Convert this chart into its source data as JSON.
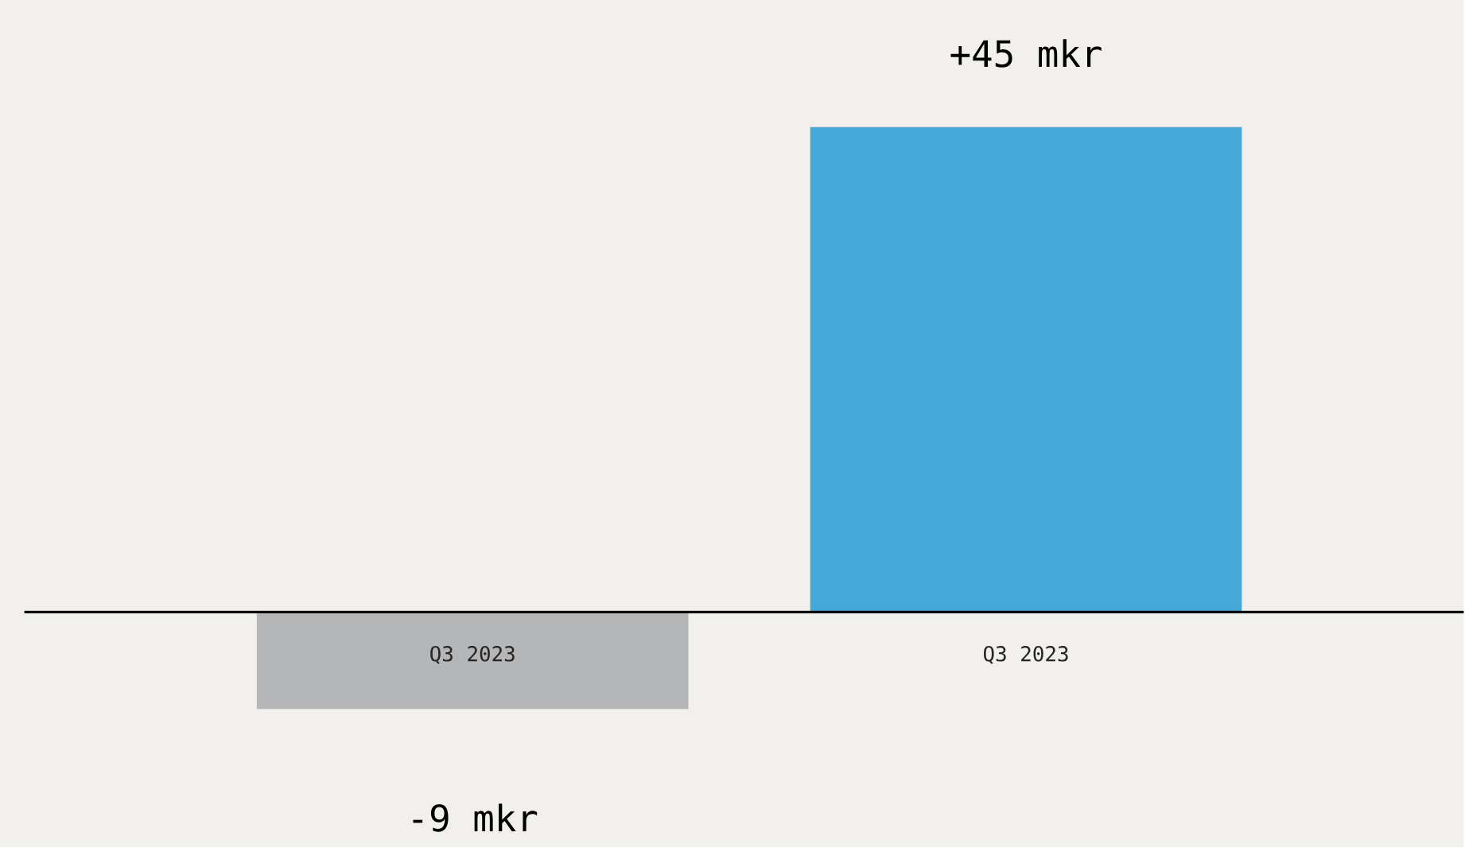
{
  "chart_data": {
    "type": "bar",
    "categories": [
      "Q3 2023",
      "Q3 2023"
    ],
    "values": [
      -9,
      45
    ],
    "colors": [
      "#b5b6b8",
      "#46a8d6"
    ],
    "value_labels": [
      "-9 mkr",
      "+45 mkr"
    ]
  }
}
